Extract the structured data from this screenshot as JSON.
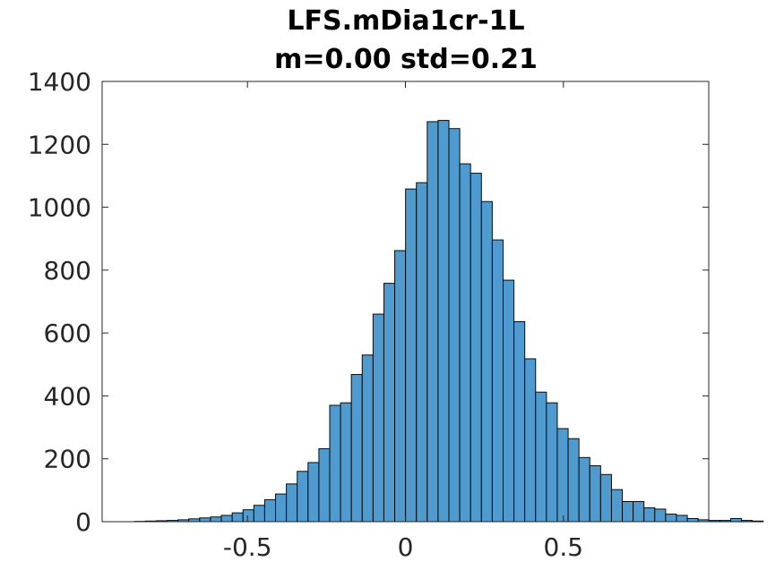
{
  "chart_data": {
    "type": "bar",
    "title": [
      "LFS.mDia1cr-1L",
      "m=0.00 std=0.21"
    ],
    "xlabel": "",
    "ylabel": "",
    "xlim": [
      -0.96,
      0.96
    ],
    "ylim": [
      0,
      1400
    ],
    "xticks": [
      -0.5,
      0,
      0.5
    ],
    "xtick_labels": [
      "-0.5",
      "0",
      "0.5"
    ],
    "yticks": [
      0,
      200,
      400,
      600,
      800,
      1000,
      1200,
      1400
    ],
    "ytick_labels": [
      "0",
      "200",
      "400",
      "600",
      "800",
      "1000",
      "1200",
      "1400"
    ],
    "bin_width": 0.0343,
    "bin_edges_start": -0.8571,
    "values": [
      1,
      2,
      3,
      4,
      6,
      9,
      12,
      15,
      20,
      28,
      38,
      52,
      70,
      88,
      120,
      160,
      188,
      232,
      370,
      378,
      468,
      530,
      660,
      758,
      862,
      1058,
      1078,
      1272,
      1276,
      1250,
      1138,
      1108,
      1018,
      896,
      768,
      636,
      518,
      412,
      378,
      296,
      264,
      204,
      178,
      150,
      102,
      64,
      64,
      44,
      40,
      24,
      20,
      10,
      6,
      4,
      4,
      10,
      4,
      2
    ],
    "grid": false,
    "bar_color": "#4f9bd0"
  }
}
